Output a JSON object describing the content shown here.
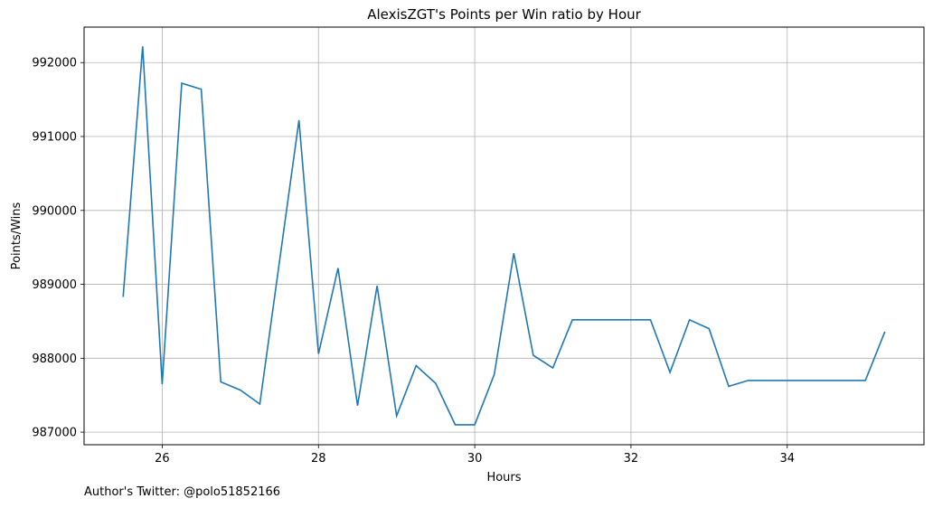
{
  "chart_data": {
    "type": "line",
    "title": "AlexisZGT's Points per Win ratio by Hour",
    "xlabel": "Hours",
    "ylabel": "Points/Wins",
    "xlim": [
      25.0,
      35.75
    ],
    "ylim": [
      986830,
      992480
    ],
    "xticks": [
      26,
      28,
      30,
      32,
      34
    ],
    "yticks": [
      987000,
      988000,
      989000,
      990000,
      991000,
      992000
    ],
    "grid": true,
    "color": "#1f77b4",
    "series": [
      {
        "x": [
          25.5,
          25.75,
          26.0,
          26.25,
          26.5,
          26.75,
          27.0,
          27.25,
          27.75,
          28.0,
          28.25,
          28.5,
          28.75,
          29.0,
          29.25,
          29.5,
          29.75,
          30.0,
          30.25,
          30.5,
          30.75,
          31.0,
          31.25,
          31.5,
          31.75,
          32.0,
          32.25,
          32.5,
          32.75,
          33.0,
          33.25,
          33.5,
          33.75,
          34.0,
          34.25,
          34.5,
          34.75,
          35.0,
          35.25
        ],
        "values": [
          988830,
          992220,
          987650,
          991720,
          991640,
          987680,
          987570,
          987380,
          991220,
          988060,
          989220,
          987360,
          988980,
          987220,
          987900,
          987660,
          987100,
          987100,
          987780,
          989420,
          988040,
          987870,
          988520,
          988520,
          988520,
          988520,
          988520,
          987810,
          988520,
          988400,
          987620,
          987700,
          987700,
          987700,
          987700,
          987700,
          987700,
          987700,
          988360
        ]
      }
    ]
  },
  "footnote": "Author's Twitter: @polo51852166"
}
